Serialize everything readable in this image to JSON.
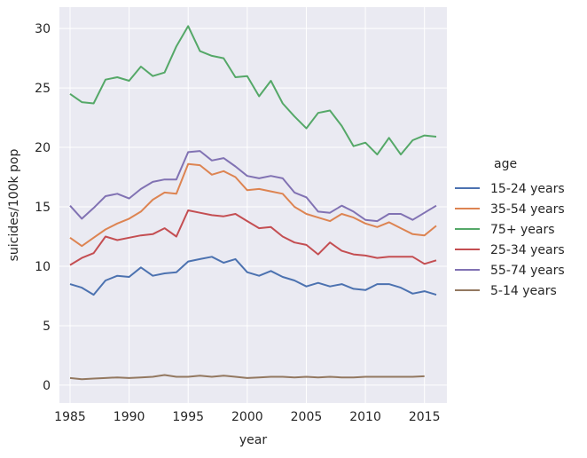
{
  "chart_data": {
    "type": "line",
    "xlabel": "year",
    "ylabel": "suicides/100k pop",
    "xlim": [
      1984.1,
      2016.9
    ],
    "ylim": [
      -1.5,
      31.8
    ],
    "xticks": [
      1985,
      1990,
      1995,
      2000,
      2005,
      2010,
      2015
    ],
    "yticks": [
      0,
      5,
      10,
      15,
      20,
      25,
      30
    ],
    "grid": true,
    "legend_title": "age",
    "legend_position": "right",
    "x": [
      1985,
      1986,
      1987,
      1988,
      1989,
      1990,
      1991,
      1992,
      1993,
      1994,
      1995,
      1996,
      1997,
      1998,
      1999,
      2000,
      2001,
      2002,
      2003,
      2004,
      2005,
      2006,
      2007,
      2008,
      2009,
      2010,
      2011,
      2012,
      2013,
      2014,
      2015,
      2016
    ],
    "series": [
      {
        "name": "15-24 years",
        "color": "#4c72b0",
        "values": [
          8.5,
          8.2,
          7.6,
          8.8,
          9.2,
          9.1,
          9.9,
          9.2,
          9.4,
          9.5,
          10.4,
          10.6,
          10.8,
          10.3,
          10.6,
          9.5,
          9.2,
          9.6,
          9.1,
          8.8,
          8.3,
          8.6,
          8.3,
          8.5,
          8.1,
          8.0,
          8.5,
          8.5,
          8.2,
          7.7,
          7.9,
          7.6
        ]
      },
      {
        "name": "35-54 years",
        "color": "#dd8452",
        "values": [
          12.4,
          11.7,
          12.4,
          13.1,
          13.6,
          14.0,
          14.6,
          15.6,
          16.2,
          16.1,
          18.6,
          18.5,
          17.7,
          18.0,
          17.5,
          16.4,
          16.5,
          16.3,
          16.1,
          15.0,
          14.4,
          14.1,
          13.8,
          14.4,
          14.1,
          13.6,
          13.3,
          13.7,
          13.2,
          12.7,
          12.6,
          13.4
        ]
      },
      {
        "name": "75+ years",
        "color": "#55a868",
        "values": [
          24.5,
          23.8,
          23.7,
          25.7,
          25.9,
          25.6,
          26.8,
          26.0,
          26.3,
          28.5,
          30.2,
          28.1,
          27.7,
          27.5,
          25.9,
          26.0,
          24.3,
          25.6,
          23.7,
          22.6,
          21.6,
          22.9,
          23.1,
          21.8,
          20.1,
          20.4,
          19.4,
          20.8,
          19.4,
          20.6,
          21.0,
          20.9
        ]
      },
      {
        "name": "25-34 years",
        "color": "#c44e52",
        "values": [
          10.1,
          10.7,
          11.1,
          12.5,
          12.2,
          12.4,
          12.6,
          12.7,
          13.2,
          12.5,
          14.7,
          14.5,
          14.3,
          14.2,
          14.4,
          13.8,
          13.2,
          13.3,
          12.5,
          12.0,
          11.8,
          11.0,
          12.0,
          11.3,
          11.0,
          10.9,
          10.7,
          10.8,
          10.8,
          10.8,
          10.2,
          10.5
        ]
      },
      {
        "name": "55-74 years",
        "color": "#8172b3",
        "values": [
          15.1,
          14.0,
          14.9,
          15.9,
          16.1,
          15.7,
          16.5,
          17.1,
          17.3,
          17.3,
          19.6,
          19.7,
          18.9,
          19.1,
          18.4,
          17.6,
          17.4,
          17.6,
          17.4,
          16.2,
          15.8,
          14.6,
          14.5,
          15.1,
          14.6,
          13.9,
          13.8,
          14.4,
          14.4,
          13.9,
          14.5,
          15.1
        ]
      },
      {
        "name": "5-14 years",
        "color": "#937860",
        "values": [
          0.6,
          0.5,
          0.55,
          0.6,
          0.65,
          0.6,
          0.65,
          0.7,
          0.85,
          0.7,
          0.7,
          0.8,
          0.7,
          0.8,
          0.7,
          0.6,
          0.65,
          0.7,
          0.7,
          0.65,
          0.7,
          0.65,
          0.7,
          0.65,
          0.65,
          0.7,
          0.7,
          0.7,
          0.7,
          0.7,
          0.75,
          null
        ]
      }
    ]
  }
}
